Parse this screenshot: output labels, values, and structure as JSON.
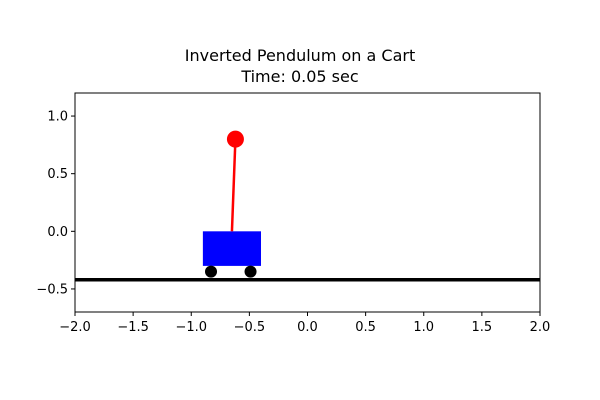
{
  "chart_data": {
    "type": "scatter",
    "title": "Inverted Pendulum on a Cart",
    "subtitle": "Time: 0.05 sec",
    "xlabel": "",
    "ylabel": "",
    "xlim": [
      -2.0,
      2.0
    ],
    "ylim": [
      -0.7,
      1.2
    ],
    "x_ticks": [
      -2.0,
      -1.5,
      -1.0,
      -0.5,
      0.0,
      0.5,
      1.0,
      1.5,
      2.0
    ],
    "x_tick_labels": [
      "−2.0",
      "−1.5",
      "−1.0",
      "−0.5",
      "0.0",
      "0.5",
      "1.0",
      "1.5",
      "2.0"
    ],
    "y_ticks": [
      -0.5,
      0.0,
      0.5,
      1.0
    ],
    "y_tick_labels": [
      "−0.5",
      "0.0",
      "0.5",
      "1.0"
    ],
    "grid": false,
    "legend": "none",
    "track": {
      "y": -0.42,
      "color": "#000000"
    },
    "cart": {
      "x_min": -0.9,
      "x_max": -0.4,
      "y_min": -0.3,
      "y_max": 0.0,
      "color": "#0000ff"
    },
    "wheels": [
      {
        "x": -0.83,
        "y": -0.35,
        "color": "#000000"
      },
      {
        "x": -0.49,
        "y": -0.35,
        "color": "#000000"
      }
    ],
    "pendulum": {
      "pivot_x": -0.65,
      "pivot_y": 0.0,
      "bob_x": -0.62,
      "bob_y": 0.8,
      "color": "#ff0000"
    }
  }
}
